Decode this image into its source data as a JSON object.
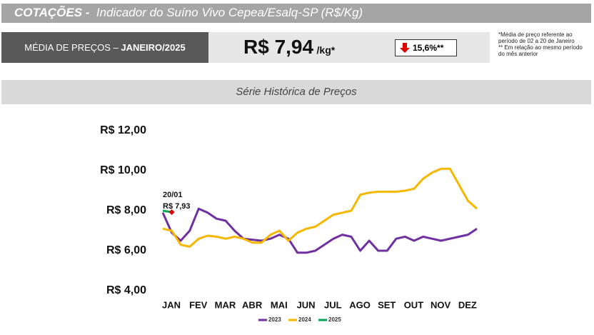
{
  "header": {
    "label": "COTAÇÕES -",
    "title": "Indicador do Suíno Vivo Cepea/Esalq-SP (R$/Kg)"
  },
  "summary": {
    "label": "MÉDIA DE PREÇOS – ",
    "period": "JANEIRO/2025",
    "price": "R$ 7,94",
    "unit": "/kg*",
    "change": "15,6%**",
    "notes": [
      "*Média de preço referente ao período de 02 a 20 de Janeiro",
      "** Em relação ao mesmo período do mês anterior"
    ]
  },
  "section_title": "Série Histórica de Preços",
  "chart_data": {
    "type": "line",
    "categories": [
      "JAN",
      null,
      null,
      "FEV",
      null,
      null,
      "MAR",
      null,
      null,
      "ABR",
      null,
      null,
      "MAI",
      null,
      null,
      "JUN",
      null,
      null,
      "JUL",
      null,
      null,
      "AGO",
      null,
      null,
      "SET",
      null,
      null,
      "OUT",
      null,
      null,
      "NOV",
      null,
      null,
      "DEZ",
      null,
      null
    ],
    "series": [
      {
        "name": "2023",
        "color": "#7030a0",
        "values": [
          7.9,
          6.9,
          6.5,
          7.0,
          8.1,
          7.9,
          7.6,
          7.5,
          7.0,
          6.6,
          6.55,
          6.5,
          6.6,
          6.8,
          6.6,
          5.9,
          5.9,
          6.0,
          6.3,
          6.6,
          6.8,
          6.7,
          6.0,
          6.5,
          6.0,
          6.0,
          6.6,
          6.7,
          6.5,
          6.7,
          6.6,
          6.5,
          6.6,
          6.7,
          6.8,
          7.1
        ]
      },
      {
        "name": "2024",
        "color": "#f5b800",
        "values": [
          7.1,
          7.0,
          6.3,
          6.2,
          6.6,
          6.75,
          6.7,
          6.6,
          6.7,
          6.6,
          6.4,
          6.4,
          6.8,
          7.0,
          6.5,
          6.9,
          7.1,
          7.2,
          7.5,
          7.8,
          7.9,
          8.0,
          8.8,
          8.9,
          8.95,
          8.95,
          8.95,
          9.0,
          9.1,
          9.6,
          9.9,
          10.1,
          10.1,
          9.3,
          8.5,
          8.1
        ]
      },
      {
        "name": "2025",
        "color": "#00a650",
        "values": [
          8.0,
          7.93,
          null,
          null,
          null,
          null,
          null,
          null,
          null,
          null,
          null,
          null,
          null,
          null,
          null,
          null,
          null,
          null,
          null,
          null,
          null,
          null,
          null,
          null,
          null,
          null,
          null,
          null,
          null,
          null,
          null,
          null,
          null,
          null,
          null,
          null
        ]
      }
    ],
    "annotations": [
      "20/01",
      "R$ 7,93"
    ],
    "ylim": [
      4,
      12
    ],
    "yticks": [
      {
        "value": 4,
        "label": "R$ 4,00"
      },
      {
        "value": 6,
        "label": "R$ 6,00"
      },
      {
        "value": 8,
        "label": "R$ 8,00"
      },
      {
        "value": 10,
        "label": "R$ 10,00"
      },
      {
        "value": 12,
        "label": "R$ 12,00"
      }
    ],
    "grid": false,
    "legend": "bottom"
  }
}
